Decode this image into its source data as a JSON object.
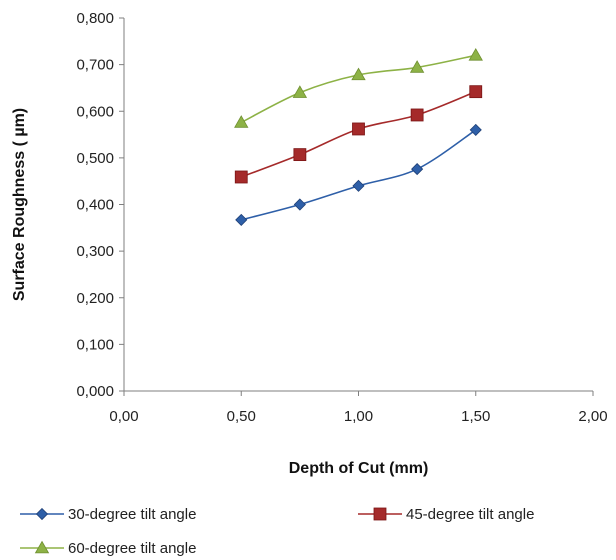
{
  "chart_data": {
    "type": "line",
    "x": [
      0.5,
      0.75,
      1.0,
      1.25,
      1.5
    ],
    "xlabel": "Depth of Cut (mm)",
    "ylabel": "Surface Roughness ( µm)",
    "xlim": [
      0,
      2
    ],
    "ylim": [
      0,
      0.8
    ],
    "xticks": [
      0,
      0.5,
      1.0,
      1.5,
      2.0
    ],
    "xtick_labels": [
      "0,00",
      "0,50",
      "1,00",
      "1,50",
      "2,00"
    ],
    "yticks": [
      0,
      0.1,
      0.2,
      0.3,
      0.4,
      0.5,
      0.6,
      0.7,
      0.8
    ],
    "ytick_labels": [
      "0,000",
      "0,100",
      "0,200",
      "0,300",
      "0,400",
      "0,500",
      "0,600",
      "0,700",
      "0,800"
    ],
    "grid": false,
    "legend_position": "bottom",
    "series": [
      {
        "name": "30-degree tilt angle",
        "values": [
          0.367,
          0.4,
          0.44,
          0.476,
          0.56
        ],
        "color": "#2e5fa8",
        "marker": "diamond"
      },
      {
        "name": "45-degree tilt angle",
        "values": [
          0.459,
          0.507,
          0.562,
          0.592,
          0.642
        ],
        "color": "#a52a2a",
        "marker": "square"
      },
      {
        "name": "60-degree tilt angle",
        "values": [
          0.576,
          0.64,
          0.678,
          0.694,
          0.72
        ],
        "color": "#8db246",
        "marker": "triangle"
      }
    ]
  }
}
